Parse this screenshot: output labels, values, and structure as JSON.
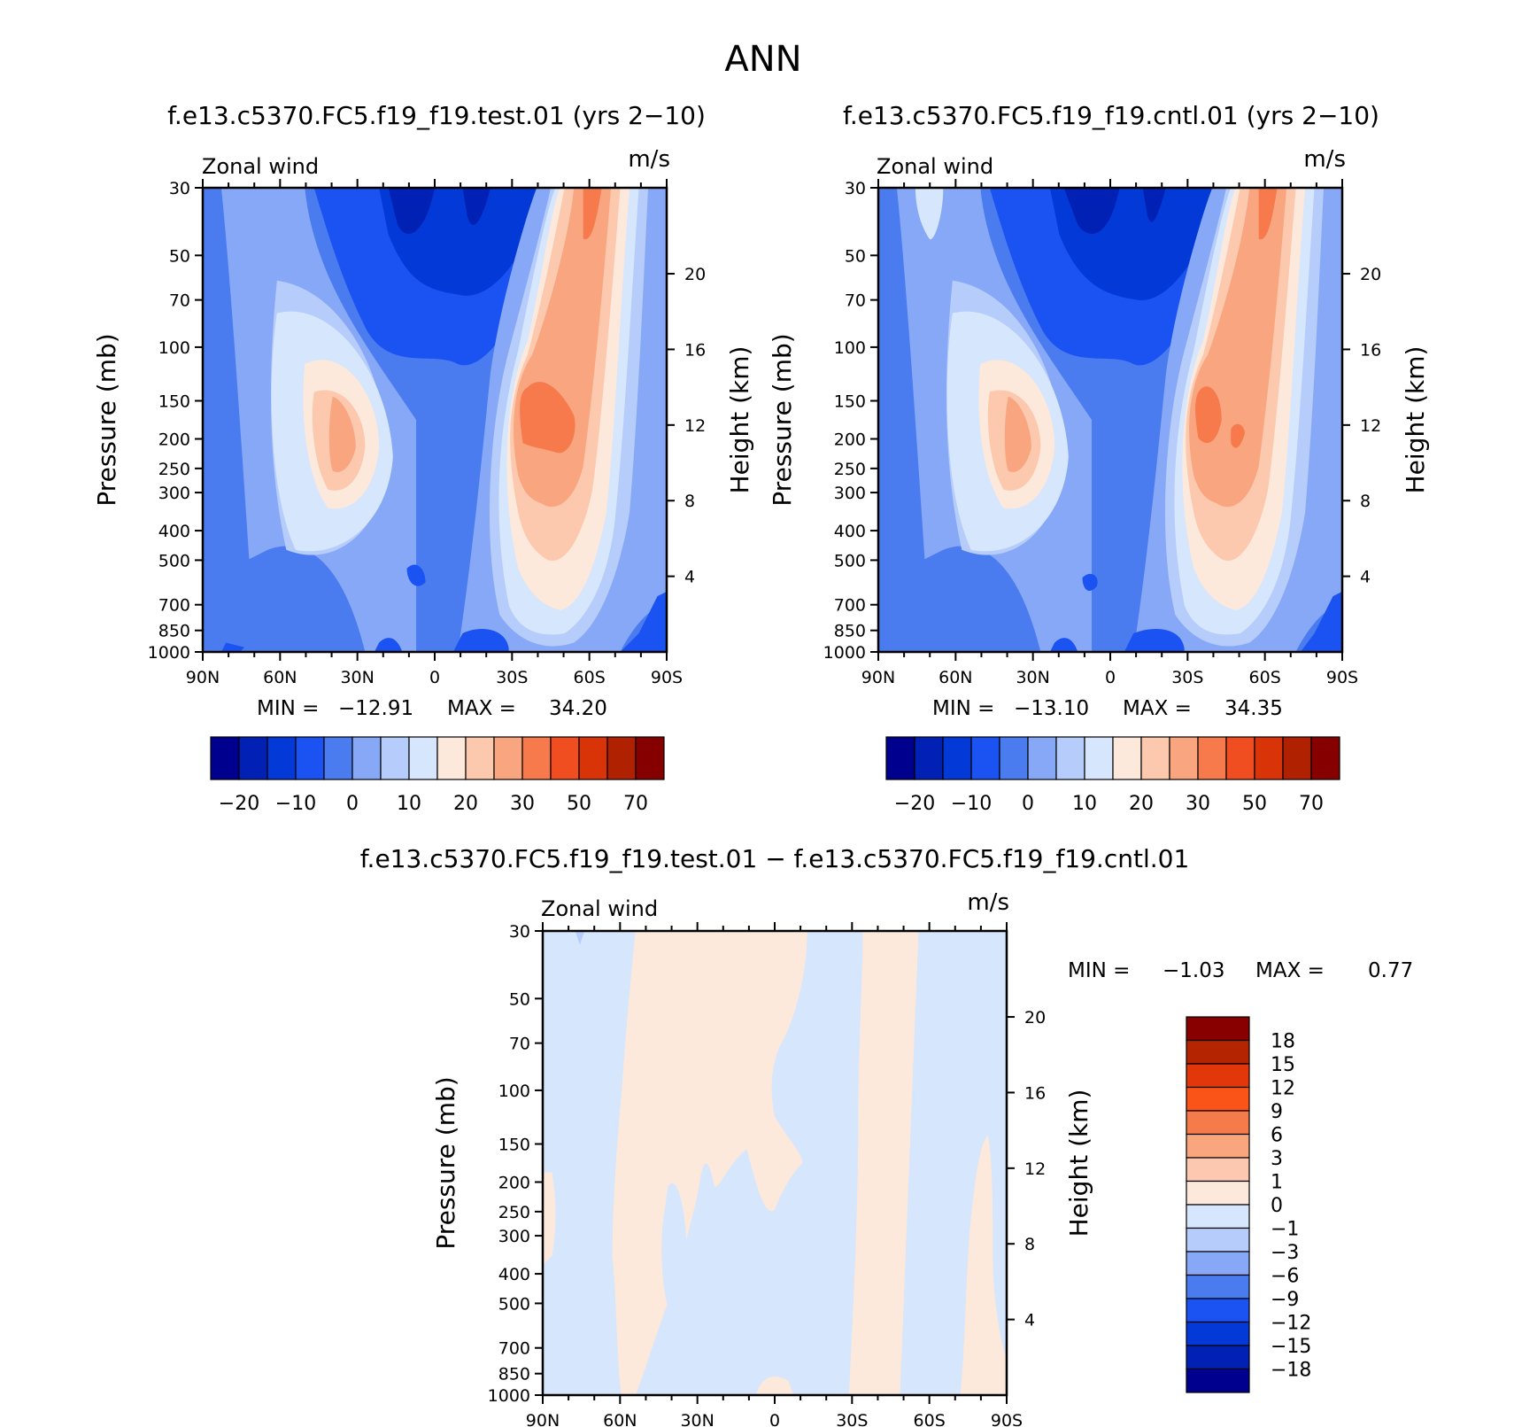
{
  "figure": {
    "title": "ANN"
  },
  "chart_data": [
    {
      "type": "heatmap",
      "title": "f.e13.c5370.FC5.f19_f19.test.01 (yrs 2−10)",
      "subtitle_left": "Zonal wind",
      "subtitle_right": "m/s",
      "xlabel": "",
      "ylabel": "Pressure (mb)",
      "ylabel_right": "Height (km)",
      "x_ticks": [
        "90N",
        "60N",
        "30N",
        "0",
        "30S",
        "60S",
        "90S"
      ],
      "x_range": [
        "90N",
        "90S"
      ],
      "y_ticks": [
        "30",
        "50",
        "70",
        "100",
        "150",
        "200",
        "250",
        "300",
        "400",
        "500",
        "700",
        "850",
        "1000"
      ],
      "y_range": [
        1000,
        30
      ],
      "y_scale": "log",
      "y_right_ticks": [
        "20",
        "16",
        "12",
        "8",
        "4"
      ],
      "stats": {
        "min_label": "MIN =",
        "min": "−12.91",
        "max_label": "MAX =",
        "max": "34.20"
      },
      "colorbar": {
        "orientation": "horizontal",
        "labels": [
          "−20",
          "−10",
          "0",
          "10",
          "20",
          "30",
          "50",
          "70"
        ]
      },
      "features": [
        {
          "region": "SH subtropical jet core",
          "lat": "35S",
          "pressure": 200,
          "value_range": [
            30,
            35
          ]
        },
        {
          "region": "NH subtropical jet core",
          "lat": "35N",
          "pressure": 200,
          "value_range": [
            20,
            30
          ]
        },
        {
          "region": "tropical easterlies aloft",
          "lat": "0",
          "pressure": 30,
          "value_range": [
            -20,
            -10
          ]
        }
      ]
    },
    {
      "type": "heatmap",
      "title": "f.e13.c5370.FC5.f19_f19.cntl.01 (yrs 2−10)",
      "subtitle_left": "Zonal wind",
      "subtitle_right": "m/s",
      "xlabel": "",
      "ylabel": "Pressure (mb)",
      "ylabel_right": "Height (km)",
      "x_ticks": [
        "90N",
        "60N",
        "30N",
        "0",
        "30S",
        "60S",
        "90S"
      ],
      "x_range": [
        "90N",
        "90S"
      ],
      "y_ticks": [
        "30",
        "50",
        "70",
        "100",
        "150",
        "200",
        "250",
        "300",
        "400",
        "500",
        "700",
        "850",
        "1000"
      ],
      "y_range": [
        1000,
        30
      ],
      "y_scale": "log",
      "y_right_ticks": [
        "20",
        "16",
        "12",
        "8",
        "4"
      ],
      "stats": {
        "min_label": "MIN =",
        "min": "−13.10",
        "max_label": "MAX =",
        "max": "34.35"
      },
      "colorbar": {
        "orientation": "horizontal",
        "labels": [
          "−20",
          "−10",
          "0",
          "10",
          "20",
          "30",
          "50",
          "70"
        ]
      },
      "features": [
        {
          "region": "SH subtropical jet core",
          "lat": "35S",
          "pressure": 200,
          "value_range": [
            30,
            35
          ]
        },
        {
          "region": "NH subtropical jet core",
          "lat": "35N",
          "pressure": 200,
          "value_range": [
            20,
            30
          ]
        },
        {
          "region": "tropical easterlies aloft",
          "lat": "0",
          "pressure": 30,
          "value_range": [
            -20,
            -10
          ]
        }
      ]
    },
    {
      "type": "heatmap",
      "title": "f.e13.c5370.FC5.f19_f19.test.01 − f.e13.c5370.FC5.f19_f19.cntl.01",
      "subtitle_left": "Zonal wind",
      "subtitle_right": "m/s",
      "xlabel": "",
      "ylabel": "Pressure (mb)",
      "ylabel_right": "Height (km)",
      "x_ticks": [
        "90N",
        "60N",
        "30N",
        "0",
        "30S",
        "60S",
        "90S"
      ],
      "x_range": [
        "90N",
        "90S"
      ],
      "y_ticks": [
        "30",
        "50",
        "70",
        "100",
        "150",
        "200",
        "250",
        "300",
        "400",
        "500",
        "700",
        "850",
        "1000"
      ],
      "y_range": [
        1000,
        30
      ],
      "y_scale": "log",
      "y_right_ticks": [
        "20",
        "16",
        "12",
        "8",
        "4"
      ],
      "stats": {
        "min_label": "MIN =",
        "min": "−1.03",
        "max_label": "MAX =",
        "max": "0.77"
      },
      "colorbar": {
        "orientation": "vertical",
        "labels": [
          "18",
          "15",
          "12",
          "9",
          "6",
          "3",
          "1",
          "0",
          "−1",
          "−3",
          "−6",
          "−9",
          "−12",
          "−15",
          "−18"
        ]
      },
      "features": [
        {
          "region": "positive band",
          "lat_range": [
            "58N",
            "20N"
          ],
          "value_range": [
            0,
            1
          ]
        },
        {
          "region": "positive band",
          "lat_range": [
            "28S",
            "55S"
          ],
          "value_range": [
            0,
            1
          ]
        },
        {
          "region": "negative background",
          "value_range": [
            -1,
            0
          ]
        }
      ]
    }
  ],
  "palettes": {
    "main": [
      "#00008f",
      "#0021b4",
      "#0339d6",
      "#1a53f2",
      "#4a7cf0",
      "#86a8f6",
      "#b6ccfa",
      "#d6e6fc",
      "#fde9dc",
      "#fcc9af",
      "#f9a680",
      "#f67a4b",
      "#f04d20",
      "#d93408",
      "#b02101",
      "#870000"
    ],
    "diff": [
      "#880000",
      "#b42401",
      "#e23708",
      "#fb5418",
      "#f67b4a",
      "#f9a67f",
      "#fcc9b0",
      "#fde9dc",
      "#d6e6fc",
      "#b6ccfa",
      "#86a8f6",
      "#4a7cf0",
      "#1a53f2",
      "#0339d6",
      "#0021b4",
      "#00008f"
    ]
  }
}
